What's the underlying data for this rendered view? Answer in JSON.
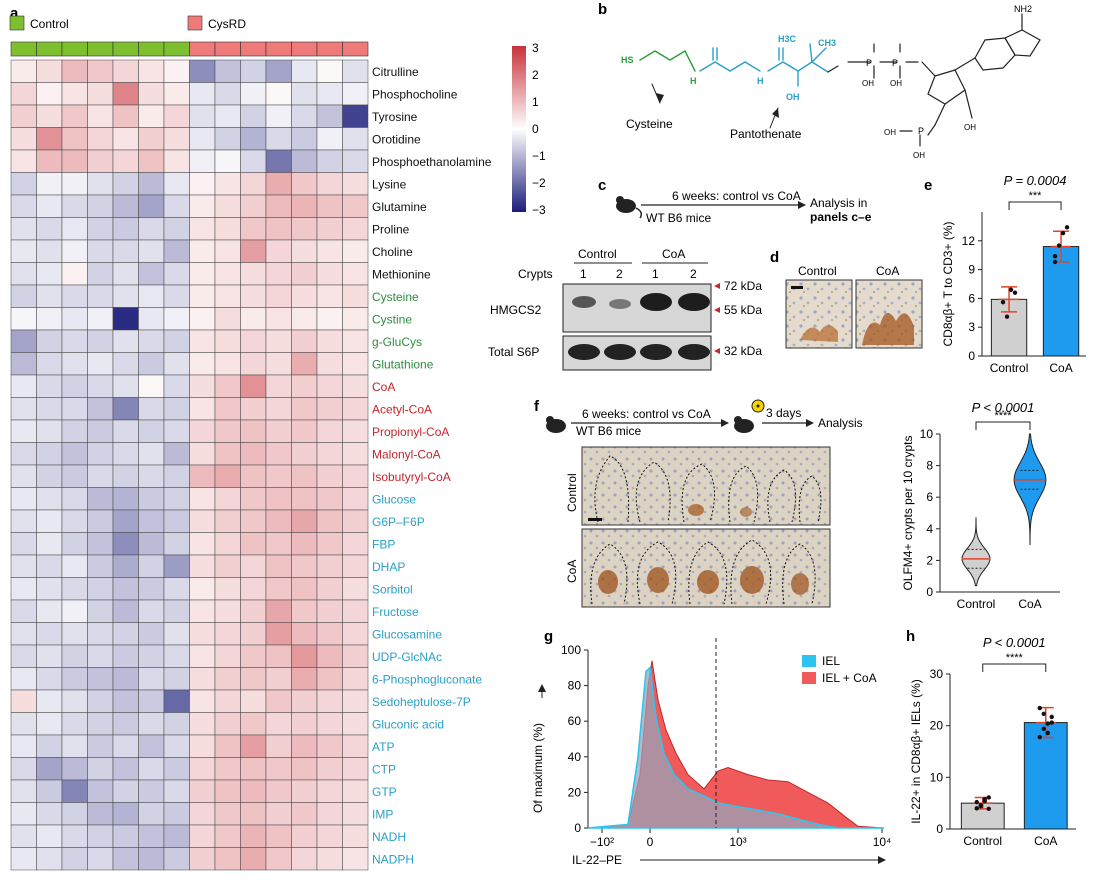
{
  "panel_letters": [
    "a",
    "b",
    "c",
    "d",
    "e",
    "f",
    "g",
    "h"
  ],
  "heatmap": {
    "legend": [
      {
        "label": "Control",
        "color": "#7dbf2e"
      },
      {
        "label": "CysRD",
        "color": "#ef7a7a"
      }
    ],
    "colorbar": {
      "ticks": [
        "3",
        "2",
        "1",
        "0",
        "-1",
        "-2",
        "-3"
      ],
      "high": "#c8323a",
      "mid": "#ffffff",
      "low": "#1b1c7a"
    },
    "rows": [
      {
        "name": "Citrulline",
        "color": "#111111",
        "v": [
          0.3,
          0.5,
          1.0,
          0.8,
          0.6,
          0.4,
          0.2,
          -1.5,
          -0.8,
          -0.6,
          -1.2,
          -0.3,
          0.1,
          -0.4
        ]
      },
      {
        "name": "Phosphocholine",
        "color": "#111111",
        "v": [
          0.6,
          0.2,
          0.4,
          0.5,
          1.8,
          0.5,
          0.3,
          -0.3,
          -0.5,
          -0.2,
          0.1,
          -0.4,
          -0.3,
          -0.2
        ]
      },
      {
        "name": "Tyrosine",
        "color": "#111111",
        "v": [
          0.7,
          0.5,
          0.8,
          0.4,
          0.9,
          0.3,
          0.6,
          -0.4,
          -0.3,
          -0.6,
          -0.2,
          -0.5,
          -0.8,
          -2.5
        ]
      },
      {
        "name": "Orotidine",
        "color": "#111111",
        "v": [
          0.5,
          1.6,
          0.9,
          0.6,
          0.4,
          0.7,
          0.5,
          -0.3,
          -0.6,
          -1.0,
          -0.5,
          -0.7,
          -0.2,
          -0.4
        ]
      },
      {
        "name": "Phosphoethanolamine",
        "color": "#111111",
        "v": [
          0.4,
          1.0,
          1.0,
          0.7,
          0.6,
          0.9,
          0.4,
          -0.2,
          -0.1,
          -0.5,
          -1.8,
          -0.9,
          -0.6,
          -0.5
        ]
      },
      {
        "name": "Lysine",
        "color": "#111111",
        "v": [
          -0.6,
          -0.2,
          -0.2,
          -0.4,
          -0.6,
          -0.9,
          -0.3,
          0.2,
          0.4,
          0.6,
          1.2,
          0.8,
          0.6,
          0.5
        ]
      },
      {
        "name": "Glutamine",
        "color": "#111111",
        "v": [
          -0.5,
          -0.3,
          -0.5,
          -0.6,
          -0.9,
          -1.2,
          -0.5,
          0.3,
          0.5,
          0.7,
          1.0,
          1.1,
          0.9,
          0.8
        ]
      },
      {
        "name": "Proline",
        "color": "#111111",
        "v": [
          -0.4,
          -0.5,
          -0.3,
          -0.6,
          -0.7,
          -0.5,
          -0.6,
          0.4,
          0.5,
          0.8,
          0.9,
          0.8,
          0.7,
          0.6
        ]
      },
      {
        "name": "Choline",
        "color": "#111111",
        "v": [
          -0.3,
          -0.4,
          -0.2,
          -0.5,
          -0.5,
          -0.4,
          -0.9,
          0.3,
          0.4,
          1.4,
          0.6,
          0.5,
          0.4,
          0.3
        ]
      },
      {
        "name": "Methionine",
        "color": "#111111",
        "v": [
          -0.4,
          -0.3,
          0.2,
          -0.6,
          -0.4,
          -0.8,
          -0.5,
          0.3,
          0.4,
          0.5,
          0.6,
          0.7,
          0.5,
          0.4
        ]
      },
      {
        "name": "Cysteine",
        "color": "#2e8b3e",
        "v": [
          -0.6,
          -0.4,
          -0.5,
          -0.5,
          -0.4,
          -0.3,
          -0.5,
          0.3,
          0.4,
          0.5,
          0.6,
          0.5,
          0.4,
          0.5
        ]
      },
      {
        "name": "Cystine",
        "color": "#2e8b3e",
        "v": [
          -0.1,
          -0.2,
          -0.3,
          -0.2,
          -2.8,
          -0.3,
          -0.2,
          0.2,
          0.5,
          0.3,
          0.4,
          0.3,
          0.2,
          0.3
        ]
      },
      {
        "name": "g-GluCys",
        "color": "#2e8b3e",
        "v": [
          -1.2,
          -0.6,
          -0.5,
          -0.6,
          -0.4,
          -0.5,
          -0.6,
          0.4,
          0.5,
          0.6,
          0.5,
          0.7,
          0.5,
          0.4
        ]
      },
      {
        "name": "Glutathione",
        "color": "#2e8b3e",
        "v": [
          -0.9,
          -0.5,
          -0.4,
          -0.3,
          -0.5,
          -0.7,
          -0.4,
          0.3,
          0.4,
          0.6,
          0.5,
          1.2,
          0.5,
          0.4
        ]
      },
      {
        "name": "CoA",
        "color": "#c1272d",
        "v": [
          -0.3,
          -0.5,
          -0.6,
          -0.5,
          -0.4,
          0.1,
          -0.5,
          0.5,
          0.8,
          1.6,
          0.6,
          0.7,
          0.6,
          0.5
        ]
      },
      {
        "name": "Acetyl-CoA",
        "color": "#c1272d",
        "v": [
          -0.4,
          -0.5,
          -0.5,
          -0.8,
          -1.6,
          -0.5,
          -0.6,
          0.4,
          0.8,
          0.7,
          0.6,
          0.8,
          0.7,
          0.6
        ]
      },
      {
        "name": "Propionyl-CoA",
        "color": "#c1272d",
        "v": [
          -0.3,
          -0.4,
          -0.6,
          -0.7,
          -0.5,
          -0.6,
          -0.5,
          0.6,
          0.8,
          0.9,
          0.7,
          0.8,
          0.6,
          0.5
        ]
      },
      {
        "name": "Malonyl-CoA",
        "color": "#c1272d",
        "v": [
          -0.5,
          -0.6,
          -0.8,
          -0.6,
          -0.5,
          -0.4,
          -0.9,
          0.5,
          0.9,
          1.0,
          0.8,
          0.7,
          0.6,
          0.5
        ]
      },
      {
        "name": "Isobutyryl-CoA",
        "color": "#c1272d",
        "v": [
          -0.4,
          -0.6,
          -0.7,
          -0.5,
          -0.6,
          -0.5,
          -0.6,
          1.0,
          1.2,
          0.9,
          0.8,
          0.9,
          0.7,
          0.6
        ]
      },
      {
        "name": "Glucose",
        "color": "#2a9fc7",
        "v": [
          -0.3,
          -0.4,
          -0.5,
          -0.9,
          -1.0,
          -0.7,
          -0.6,
          0.4,
          0.6,
          0.8,
          0.9,
          0.9,
          0.8,
          0.6
        ]
      },
      {
        "name": "G6P–F6P",
        "color": "#2a9fc7",
        "v": [
          -0.4,
          -0.3,
          -0.5,
          -0.7,
          -1.2,
          -0.8,
          -0.7,
          0.5,
          0.7,
          0.8,
          1.0,
          1.3,
          0.9,
          0.7
        ]
      },
      {
        "name": "FBP",
        "color": "#2a9fc7",
        "v": [
          -0.5,
          -0.3,
          -0.6,
          -0.8,
          -1.5,
          -0.9,
          -0.6,
          0.4,
          0.6,
          0.9,
          0.8,
          1.0,
          0.8,
          0.6
        ]
      },
      {
        "name": "DHAP",
        "color": "#2a9fc7",
        "v": [
          -0.4,
          -0.5,
          -0.3,
          -0.7,
          -1.1,
          -0.6,
          -1.3,
          0.5,
          0.7,
          0.6,
          0.9,
          0.8,
          0.7,
          0.6
        ]
      },
      {
        "name": "Sorbitol",
        "color": "#2a9fc7",
        "v": [
          -0.3,
          -0.4,
          -0.5,
          -0.6,
          -0.8,
          -0.7,
          -0.5,
          0.3,
          0.5,
          0.6,
          0.8,
          0.9,
          0.7,
          0.5
        ]
      },
      {
        "name": "Fructose",
        "color": "#2a9fc7",
        "v": [
          -0.5,
          -0.3,
          -0.2,
          -0.6,
          -0.9,
          -0.5,
          -0.6,
          0.4,
          0.5,
          0.7,
          1.3,
          0.8,
          0.7,
          0.6
        ]
      },
      {
        "name": "Glucosamine",
        "color": "#2a9fc7",
        "v": [
          -0.4,
          -0.5,
          -0.4,
          -0.5,
          -0.6,
          -0.7,
          -0.4,
          0.5,
          0.6,
          0.7,
          1.4,
          1.0,
          0.8,
          0.6
        ]
      },
      {
        "name": "UDP-GlcNAc",
        "color": "#2a9fc7",
        "v": [
          -0.5,
          -0.4,
          -0.6,
          -0.5,
          -0.7,
          -0.6,
          -0.5,
          0.4,
          0.6,
          0.8,
          0.9,
          1.5,
          1.0,
          0.7
        ]
      },
      {
        "name": "6-Phosphogluconate",
        "color": "#2a9fc7",
        "v": [
          -0.3,
          -0.5,
          -0.7,
          -0.8,
          -0.9,
          -0.5,
          -0.6,
          0.5,
          0.7,
          0.8,
          0.7,
          1.2,
          0.9,
          0.6
        ]
      },
      {
        "name": "Sedoheptulose-7P",
        "color": "#2a9fc7",
        "v": [
          0.5,
          -0.3,
          -0.4,
          -0.6,
          -0.8,
          -0.7,
          -2.0,
          0.4,
          0.6,
          0.5,
          0.8,
          0.7,
          0.6,
          0.5
        ]
      },
      {
        "name": "Gluconic acid",
        "color": "#2a9fc7",
        "v": [
          -0.4,
          -0.3,
          -0.5,
          -0.6,
          -0.7,
          -0.5,
          -0.6,
          0.5,
          0.7,
          0.8,
          0.6,
          0.7,
          0.6,
          0.5
        ]
      },
      {
        "name": "ATP",
        "color": "#2a9fc7",
        "v": [
          -0.3,
          -0.6,
          -0.4,
          -0.7,
          -0.5,
          -0.8,
          -0.5,
          0.5,
          0.9,
          1.4,
          0.7,
          1.0,
          0.8,
          0.6
        ]
      },
      {
        "name": "CTP",
        "color": "#2a9fc7",
        "v": [
          -0.5,
          -1.2,
          -0.9,
          -0.6,
          -0.8,
          -0.5,
          -0.7,
          0.6,
          0.8,
          0.9,
          0.8,
          0.9,
          0.7,
          0.6
        ]
      },
      {
        "name": "GTP",
        "color": "#2a9fc7",
        "v": [
          -0.4,
          -0.7,
          -1.6,
          -0.8,
          -0.6,
          -0.7,
          -0.5,
          0.7,
          0.9,
          1.0,
          0.8,
          0.7,
          0.6,
          0.5
        ]
      },
      {
        "name": "IMP",
        "color": "#2a9fc7",
        "v": [
          -0.3,
          -0.5,
          -0.6,
          -0.9,
          -1.0,
          -0.6,
          -0.7,
          0.6,
          0.8,
          0.9,
          0.7,
          0.8,
          0.6,
          0.5
        ]
      },
      {
        "name": "NADH",
        "color": "#2a9fc7",
        "v": [
          -0.4,
          -0.3,
          -0.5,
          -0.6,
          -0.7,
          -0.8,
          -0.9,
          0.6,
          0.8,
          1.1,
          0.9,
          0.7,
          0.6,
          0.5
        ]
      },
      {
        "name": "NADPH",
        "color": "#2a9fc7",
        "v": [
          -0.3,
          -0.4,
          -0.6,
          -0.5,
          -0.8,
          -0.9,
          -0.7,
          0.7,
          0.9,
          1.2,
          0.8,
          0.6,
          0.5,
          0.4
        ]
      }
    ]
  },
  "structure": {
    "labels": {
      "cysteine": "Cysteine",
      "pantothenate": "Pantothenate",
      "hs": "HS",
      "nh": "H",
      "oh": "OH",
      "h3c": "H3C",
      "ch3": "CH3",
      "o": "O",
      "p": "P",
      "nh2": "NH2"
    }
  },
  "panel_c": {
    "timeline": "6 weeks: control vs CoA",
    "mice": "WT B6 mice",
    "analysis_line1": "Analysis in",
    "analysis_line2": "panels c–e",
    "blot": {
      "group1": "Control",
      "group2": "CoA",
      "crypts": "Crypts",
      "lanes": [
        "1",
        "2",
        "1",
        "2"
      ],
      "row1": "HMGCS2",
      "row2": "Total S6P",
      "markers": [
        "72 kDa",
        "55 kDa",
        "32 kDa"
      ]
    }
  },
  "panel_d": {
    "labels": [
      "Control",
      "CoA"
    ]
  },
  "chart_data": [
    {
      "type": "bar",
      "panel": "e",
      "categories": [
        "Control",
        "CoA"
      ],
      "values": [
        5.9,
        11.4
      ],
      "errors": [
        1.3,
        1.6
      ],
      "points": [
        [
          5.6,
          4.1,
          6.9,
          6.6
        ],
        [
          9.8,
          11.5,
          12.8,
          13.4,
          10.4
        ]
      ],
      "colors": [
        "#d0d0d0",
        "#1e9bef"
      ],
      "ylabel": "CD8αβ+ T to CD3+ (%)",
      "ylim": [
        0,
        15
      ],
      "yticks": [
        "0",
        "3",
        "6",
        "9",
        "12"
      ],
      "pvalue": "P = 0.0004",
      "stars": "***"
    },
    {
      "type": "violin",
      "panel": "f",
      "categories": [
        "Control",
        "CoA"
      ],
      "median": [
        2.1,
        7.1
      ],
      "range": [
        [
          0.4,
          4.7
        ],
        [
          3.0,
          10.0
        ]
      ],
      "colors": [
        "#d0d0d0",
        "#1e9bef"
      ],
      "ylabel": "OLFM4+ crypts per 10 crypts",
      "ylim": [
        0,
        10
      ],
      "yticks": [
        "0",
        "2",
        "4",
        "6",
        "8",
        "10"
      ],
      "pvalue": "P < 0.0001",
      "stars": "****"
    },
    {
      "type": "area",
      "panel": "g",
      "series": [
        {
          "name": "IEL",
          "color": "#2fc4ef"
        },
        {
          "name": "IEL + CoA",
          "color": "#f05a5a"
        }
      ],
      "xlabel": "IL-22–PE",
      "ylabel": "Of maximum (%)",
      "yticks": [
        "0",
        "20",
        "40",
        "60",
        "80",
        "100"
      ],
      "xticks": [
        "−10²",
        "0",
        "10³",
        "10⁴"
      ]
    },
    {
      "type": "bar",
      "panel": "h",
      "categories": [
        "Control",
        "CoA"
      ],
      "values": [
        5.0,
        20.6
      ],
      "errors": [
        1.1,
        2.9
      ],
      "points": [
        [
          4.0,
          4.6,
          5.4,
          6.1,
          5.2,
          4.4,
          5.8,
          3.9
        ],
        [
          17.8,
          19.4,
          20.4,
          21.7,
          23.4,
          22.3,
          18.6,
          20.6
        ]
      ],
      "colors": [
        "#d0d0d0",
        "#1e9bef"
      ],
      "ylabel": "IL-22+ in CD8αβ+ IELs (%)",
      "ylim": [
        0,
        30
      ],
      "yticks": [
        "0",
        "10",
        "20",
        "30"
      ],
      "pvalue": "P < 0.0001",
      "stars": "****"
    }
  ],
  "panel_f": {
    "timeline": "6 weeks: control vs CoA",
    "mice": "WT B6 mice",
    "days": "3 days",
    "analysis": "Analysis",
    "row_labels": [
      "Control",
      "CoA"
    ]
  }
}
